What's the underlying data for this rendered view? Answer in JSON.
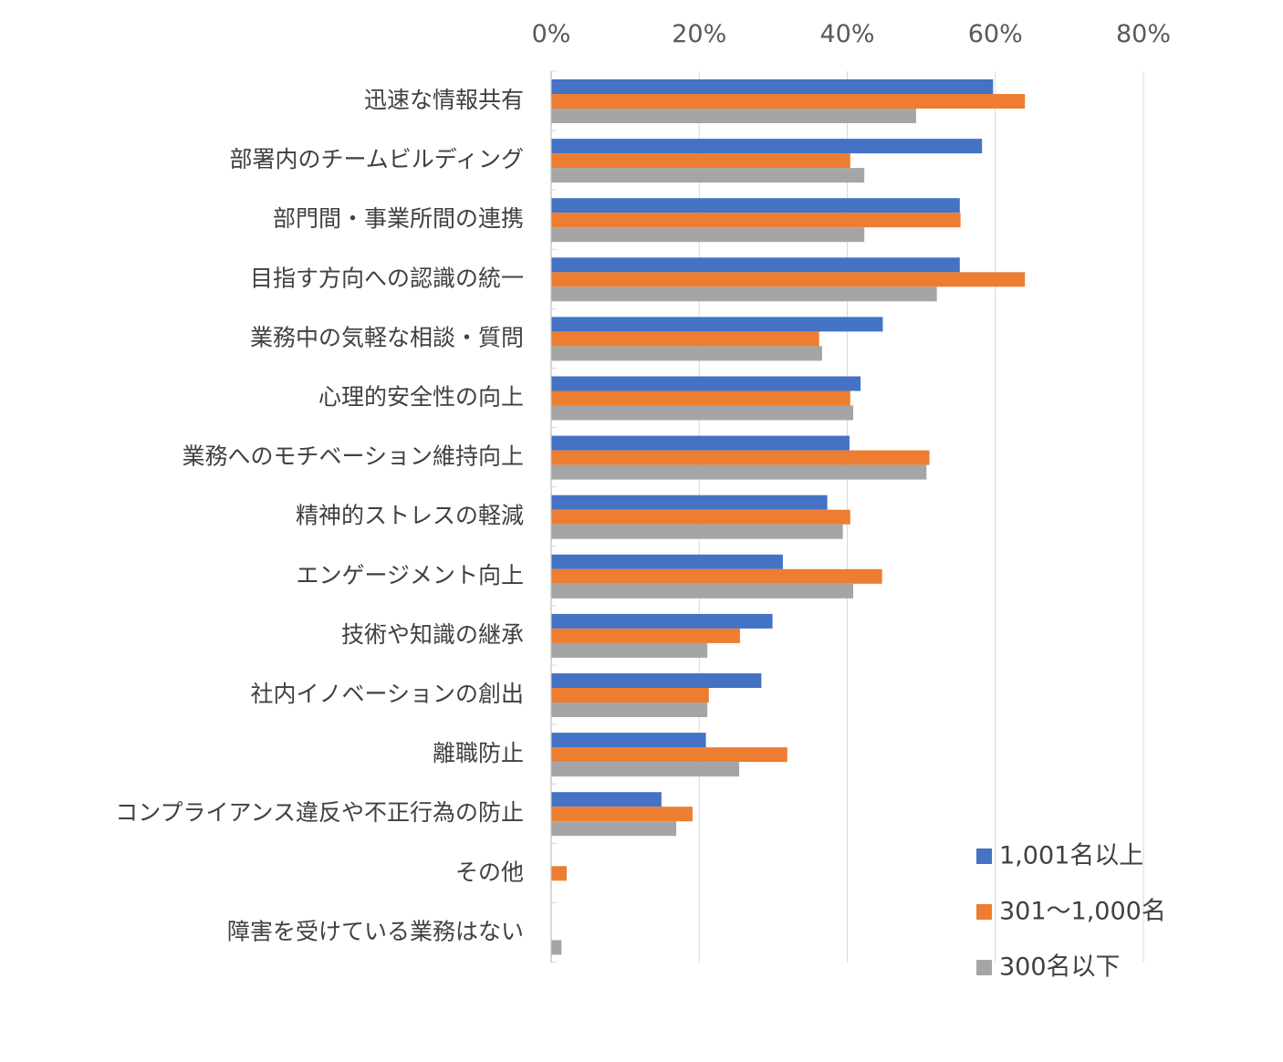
{
  "chart_data": {
    "type": "bar",
    "orientation": "horizontal",
    "x_axis_position": "top",
    "xlim": [
      0,
      80
    ],
    "x_ticks": [
      "0%",
      "20%",
      "40%",
      "60%",
      "80%"
    ],
    "grid": true,
    "legend_position": "bottom-right",
    "categories": [
      "迅速な情報共有",
      "部署内のチームビルディング",
      "部門間・事業所間の連携",
      "目指す方向への認識の統一",
      "業務中の気軽な相談・質問",
      "心理的安全性の向上",
      "業務へのモチベーション維持向上",
      "精神的ストレスの軽減",
      "エンゲージメント向上",
      "技術や知識の継承",
      "社内イノベーションの創出",
      "離職防止",
      "コンプライアンス違反や不正行為の防止",
      "その他",
      "障害を受けている業務はない"
    ],
    "series": [
      {
        "name": "1,001名以上",
        "color": "#4472C4",
        "values": [
          59.7,
          58.2,
          55.2,
          55.2,
          44.8,
          41.8,
          40.3,
          37.3,
          31.3,
          29.9,
          28.4,
          20.9,
          14.9,
          0,
          0
        ]
      },
      {
        "name": "301～1,000名",
        "color": "#ED7D31",
        "values": [
          64.0,
          40.4,
          55.3,
          64.0,
          36.2,
          40.4,
          51.1,
          40.4,
          44.7,
          25.5,
          21.3,
          31.9,
          19.1,
          2.1,
          0
        ]
      },
      {
        "name": "300名以下",
        "color": "#A5A5A5",
        "values": [
          49.3,
          42.3,
          42.3,
          52.1,
          36.6,
          40.8,
          50.7,
          39.4,
          40.8,
          21.1,
          21.1,
          25.4,
          16.9,
          0,
          1.4
        ]
      }
    ]
  }
}
